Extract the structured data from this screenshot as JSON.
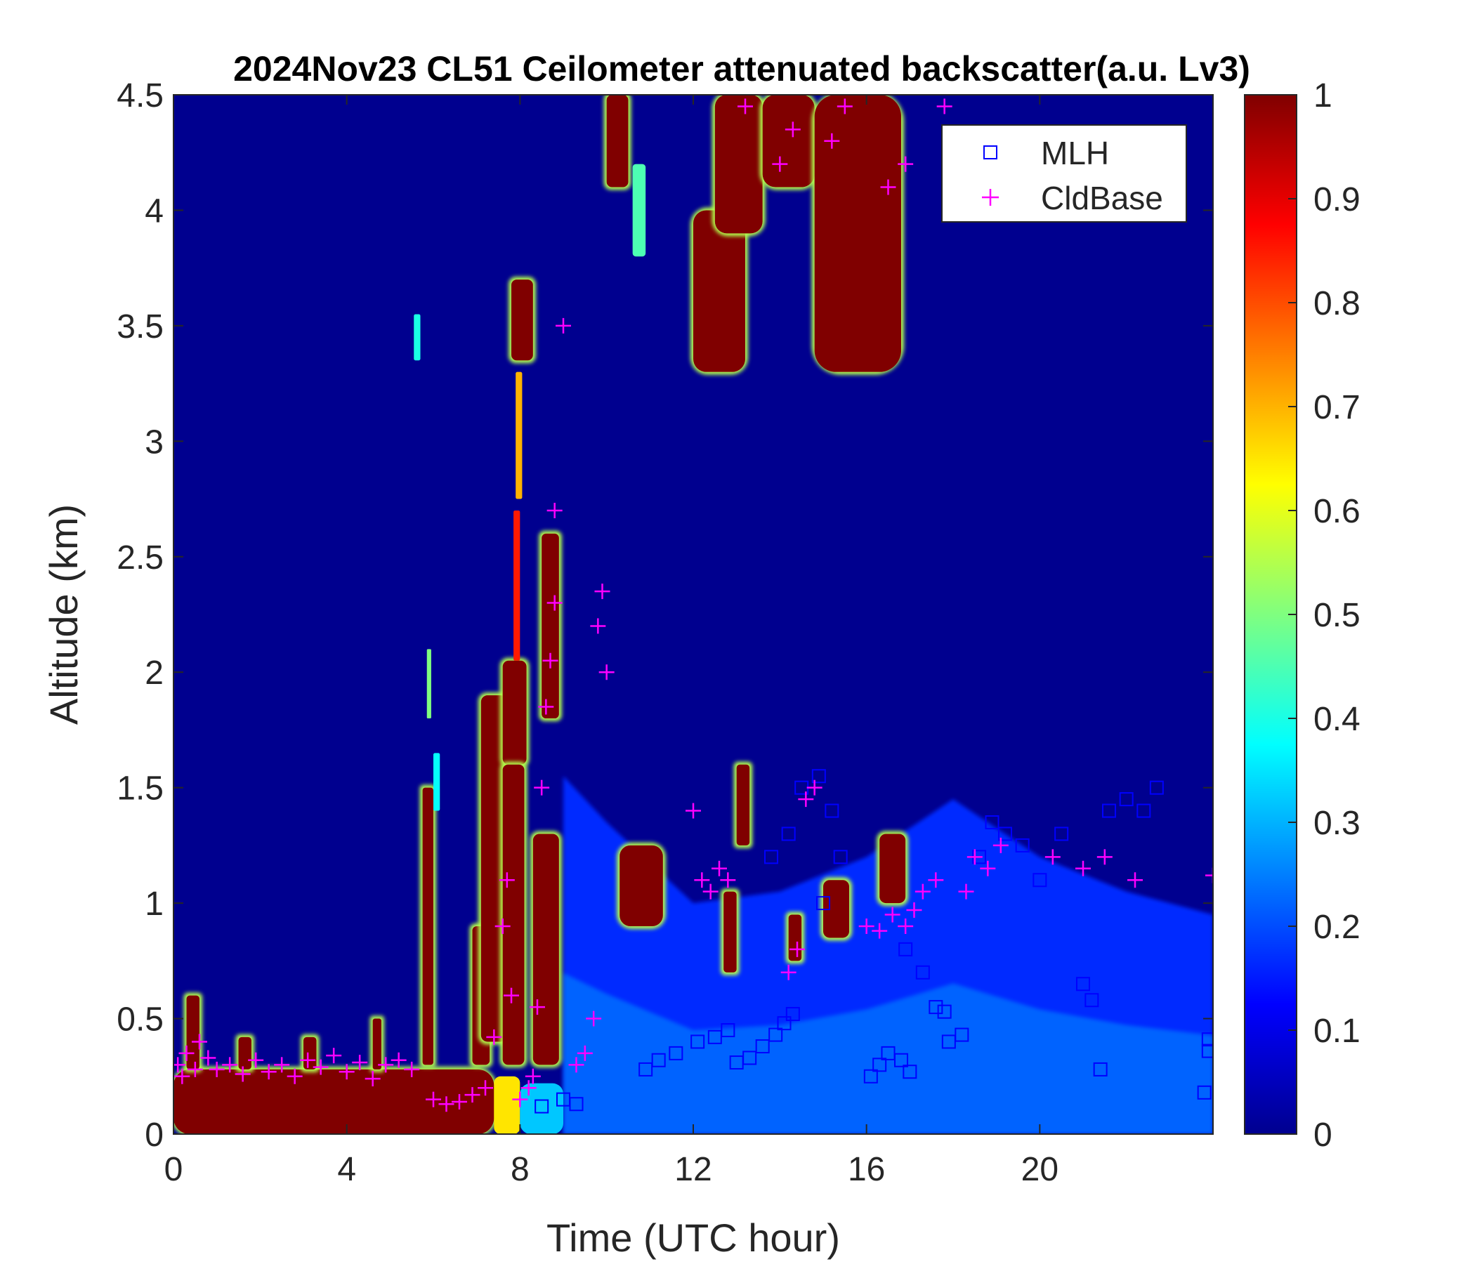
{
  "chart_data": {
    "type": "heatmap",
    "title": "2024Nov23 CL51 Ceilometer attenuated backscatter(a.u. Lv3)",
    "xlabel": "Time (UTC hour)",
    "ylabel": "Altitude (km)",
    "xlim": [
      0,
      24
    ],
    "ylim": [
      0,
      4.5
    ],
    "x_ticks": [
      0,
      4,
      8,
      12,
      16,
      20
    ],
    "x_tick_labels": [
      "0",
      "4",
      "8",
      "12",
      "16",
      "20"
    ],
    "y_ticks": [
      0,
      0.5,
      1,
      1.5,
      2,
      2.5,
      3,
      3.5,
      4,
      4.5
    ],
    "y_tick_labels": [
      "0",
      "0.5",
      "1",
      "1.5",
      "2",
      "2.5",
      "3",
      "3.5",
      "4",
      "4.5"
    ],
    "colorbar": {
      "min": 0,
      "max": 1,
      "ticks": [
        0,
        0.1,
        0.2,
        0.3,
        0.4,
        0.5,
        0.6,
        0.7,
        0.8,
        0.9,
        1
      ],
      "tick_labels": [
        "0",
        "0.1",
        "0.2",
        "0.3",
        "0.4",
        "0.5",
        "0.6",
        "0.7",
        "0.8",
        "0.9",
        "1"
      ],
      "colormap": "jet"
    },
    "legend": {
      "placement": "top-right",
      "entries": [
        {
          "label": "MLH",
          "marker": "square",
          "color": "#0000ff"
        },
        {
          "label": "CldBase",
          "marker": "plus",
          "color": "#ff00ff"
        }
      ]
    },
    "background_color": "#00008f",
    "aerosol_layer": [
      {
        "x": 9.0,
        "top": 1.55,
        "value": 0.14
      },
      {
        "x": 10.0,
        "top": 1.35,
        "value": 0.16
      },
      {
        "x": 12.0,
        "top": 1.0,
        "value": 0.18
      },
      {
        "x": 14.0,
        "top": 1.05,
        "value": 0.2
      },
      {
        "x": 16.0,
        "top": 1.2,
        "value": 0.19
      },
      {
        "x": 18.0,
        "top": 1.45,
        "value": 0.17
      },
      {
        "x": 20.0,
        "top": 1.2,
        "value": 0.16
      },
      {
        "x": 22.0,
        "top": 1.05,
        "value": 0.15
      },
      {
        "x": 24.0,
        "top": 0.95,
        "value": 0.14
      }
    ],
    "features": [
      {
        "x0": 0.0,
        "x1": 7.4,
        "y0": 0.0,
        "y1": 0.28,
        "value": 1.0
      },
      {
        "x0": 7.4,
        "x1": 8.0,
        "y0": 0.0,
        "y1": 0.25,
        "value": 0.65
      },
      {
        "x0": 8.0,
        "x1": 9.0,
        "y0": 0.0,
        "y1": 0.22,
        "value": 0.32
      },
      {
        "x0": 0.3,
        "x1": 0.6,
        "y0": 0.28,
        "y1": 0.6,
        "value": 1.0
      },
      {
        "x0": 1.5,
        "x1": 1.8,
        "y0": 0.28,
        "y1": 0.42,
        "value": 1.0
      },
      {
        "x0": 3.0,
        "x1": 3.3,
        "y0": 0.28,
        "y1": 0.42,
        "value": 1.0
      },
      {
        "x0": 4.6,
        "x1": 4.8,
        "y0": 0.28,
        "y1": 0.5,
        "value": 1.0
      },
      {
        "x0": 5.55,
        "x1": 5.7,
        "y0": 3.35,
        "y1": 3.55,
        "value": 0.4
      },
      {
        "x0": 5.75,
        "x1": 6.0,
        "y0": 0.3,
        "y1": 1.5,
        "value": 1.0
      },
      {
        "x0": 6.0,
        "x1": 6.15,
        "y0": 1.4,
        "y1": 1.65,
        "value": 0.38
      },
      {
        "x0": 5.85,
        "x1": 5.95,
        "y0": 1.8,
        "y1": 2.1,
        "value": 0.5
      },
      {
        "x0": 6.9,
        "x1": 7.3,
        "y0": 0.3,
        "y1": 0.9,
        "value": 1.0
      },
      {
        "x0": 7.1,
        "x1": 7.7,
        "y0": 0.4,
        "y1": 1.9,
        "value": 1.0
      },
      {
        "x0": 7.6,
        "x1": 8.15,
        "y0": 1.6,
        "y1": 2.05,
        "value": 1.0
      },
      {
        "x0": 7.6,
        "x1": 8.1,
        "y0": 0.3,
        "y1": 1.6,
        "value": 1.0
      },
      {
        "x0": 7.85,
        "x1": 8.0,
        "y0": 2.05,
        "y1": 2.7,
        "value": 0.85
      },
      {
        "x0": 7.9,
        "x1": 8.05,
        "y0": 2.75,
        "y1": 3.3,
        "value": 0.7
      },
      {
        "x0": 7.8,
        "x1": 8.3,
        "y0": 3.35,
        "y1": 3.7,
        "value": 1.0
      },
      {
        "x0": 8.5,
        "x1": 8.9,
        "y0": 1.8,
        "y1": 2.6,
        "value": 1.0
      },
      {
        "x0": 8.3,
        "x1": 8.9,
        "y0": 0.3,
        "y1": 1.3,
        "value": 1.0
      },
      {
        "x0": 10.0,
        "x1": 10.5,
        "y0": 4.1,
        "y1": 4.5,
        "value": 1.0
      },
      {
        "x0": 10.6,
        "x1": 10.9,
        "y0": 3.8,
        "y1": 4.2,
        "value": 0.45
      },
      {
        "x0": 10.3,
        "x1": 11.3,
        "y0": 0.9,
        "y1": 1.25,
        "value": 1.0
      },
      {
        "x0": 12.0,
        "x1": 13.2,
        "y0": 3.3,
        "y1": 4.0,
        "value": 1.0
      },
      {
        "x0": 12.5,
        "x1": 13.6,
        "y0": 3.9,
        "y1": 4.5,
        "value": 1.0
      },
      {
        "x0": 13.6,
        "x1": 14.8,
        "y0": 4.1,
        "y1": 4.5,
        "value": 1.0
      },
      {
        "x0": 14.8,
        "x1": 16.8,
        "y0": 3.3,
        "y1": 4.5,
        "value": 1.0
      },
      {
        "x0": 12.7,
        "x1": 13.0,
        "y0": 0.7,
        "y1": 1.05,
        "value": 1.0
      },
      {
        "x0": 13.0,
        "x1": 13.3,
        "y0": 1.25,
        "y1": 1.6,
        "value": 1.0
      },
      {
        "x0": 14.2,
        "x1": 14.5,
        "y0": 0.75,
        "y1": 0.95,
        "value": 1.0
      },
      {
        "x0": 15.0,
        "x1": 15.6,
        "y0": 0.85,
        "y1": 1.1,
        "value": 1.0
      },
      {
        "x0": 16.3,
        "x1": 16.9,
        "y0": 1.0,
        "y1": 1.3,
        "value": 1.0
      }
    ],
    "series": [
      {
        "name": "MLH",
        "marker": "square",
        "points": [
          [
            8.5,
            0.12
          ],
          [
            9.0,
            0.15
          ],
          [
            9.3,
            0.13
          ],
          [
            10.9,
            0.28
          ],
          [
            11.2,
            0.32
          ],
          [
            11.6,
            0.35
          ],
          [
            12.1,
            0.4
          ],
          [
            12.5,
            0.42
          ],
          [
            12.8,
            0.45
          ],
          [
            13.0,
            0.31
          ],
          [
            13.3,
            0.33
          ],
          [
            13.6,
            0.38
          ],
          [
            13.9,
            0.43
          ],
          [
            14.1,
            0.48
          ],
          [
            14.3,
            0.52
          ],
          [
            13.8,
            1.2
          ],
          [
            14.2,
            1.3
          ],
          [
            14.5,
            1.5
          ],
          [
            14.9,
            1.55
          ],
          [
            15.2,
            1.4
          ],
          [
            15.4,
            1.2
          ],
          [
            15.0,
            1.0
          ],
          [
            16.1,
            0.25
          ],
          [
            16.3,
            0.3
          ],
          [
            16.5,
            0.35
          ],
          [
            16.8,
            0.32
          ],
          [
            17.0,
            0.27
          ],
          [
            16.9,
            0.8
          ],
          [
            17.3,
            0.7
          ],
          [
            17.6,
            0.55
          ],
          [
            17.8,
            0.53
          ],
          [
            17.9,
            0.4
          ],
          [
            18.2,
            0.43
          ],
          [
            18.6,
            1.2
          ],
          [
            18.9,
            1.35
          ],
          [
            19.2,
            1.3
          ],
          [
            19.6,
            1.25
          ],
          [
            20.0,
            1.1
          ],
          [
            20.5,
            1.3
          ],
          [
            21.0,
            0.65
          ],
          [
            21.2,
            0.58
          ],
          [
            21.4,
            0.28
          ],
          [
            21.6,
            1.4
          ],
          [
            22.0,
            1.45
          ],
          [
            22.4,
            1.4
          ],
          [
            22.7,
            1.5
          ],
          [
            23.9,
            0.41
          ],
          [
            23.9,
            0.36
          ],
          [
            23.8,
            0.18
          ]
        ]
      },
      {
        "name": "CldBase",
        "marker": "plus",
        "points": [
          [
            0.1,
            0.3
          ],
          [
            0.2,
            0.25
          ],
          [
            0.3,
            0.35
          ],
          [
            0.5,
            0.28
          ],
          [
            0.6,
            0.4
          ],
          [
            0.8,
            0.33
          ],
          [
            1.0,
            0.28
          ],
          [
            1.3,
            0.3
          ],
          [
            1.6,
            0.26
          ],
          [
            1.9,
            0.32
          ],
          [
            2.2,
            0.27
          ],
          [
            2.5,
            0.3
          ],
          [
            2.8,
            0.25
          ],
          [
            3.1,
            0.32
          ],
          [
            3.4,
            0.29
          ],
          [
            3.7,
            0.34
          ],
          [
            4.0,
            0.27
          ],
          [
            4.3,
            0.31
          ],
          [
            4.6,
            0.24
          ],
          [
            4.9,
            0.3
          ],
          [
            5.2,
            0.32
          ],
          [
            5.5,
            0.28
          ],
          [
            6.0,
            0.15
          ],
          [
            6.3,
            0.13
          ],
          [
            6.6,
            0.14
          ],
          [
            6.9,
            0.17
          ],
          [
            7.2,
            0.2
          ],
          [
            7.4,
            0.42
          ],
          [
            7.6,
            0.9
          ],
          [
            7.7,
            1.1
          ],
          [
            7.8,
            0.6
          ],
          [
            8.0,
            0.15
          ],
          [
            8.2,
            0.2
          ],
          [
            8.3,
            0.25
          ],
          [
            8.4,
            0.55
          ],
          [
            8.5,
            1.5
          ],
          [
            8.6,
            1.85
          ],
          [
            8.7,
            2.05
          ],
          [
            8.8,
            2.3
          ],
          [
            8.8,
            2.7
          ],
          [
            9.0,
            3.5
          ],
          [
            9.3,
            0.3
          ],
          [
            9.5,
            0.35
          ],
          [
            9.7,
            0.5
          ],
          [
            9.8,
            2.2
          ],
          [
            9.9,
            2.35
          ],
          [
            10.0,
            2.0
          ],
          [
            12.0,
            1.4
          ],
          [
            12.2,
            1.1
          ],
          [
            12.4,
            1.05
          ],
          [
            12.6,
            1.15
          ],
          [
            12.8,
            1.1
          ],
          [
            14.2,
            0.7
          ],
          [
            14.4,
            0.8
          ],
          [
            14.6,
            1.45
          ],
          [
            14.8,
            1.5
          ],
          [
            15.2,
            4.3
          ],
          [
            15.5,
            4.45
          ],
          [
            16.0,
            0.9
          ],
          [
            16.3,
            0.88
          ],
          [
            16.6,
            0.95
          ],
          [
            16.9,
            0.9
          ],
          [
            17.1,
            0.97
          ],
          [
            17.3,
            1.05
          ],
          [
            17.6,
            1.1
          ],
          [
            17.8,
            4.45
          ],
          [
            18.3,
            1.05
          ],
          [
            18.5,
            1.2
          ],
          [
            18.8,
            1.15
          ],
          [
            19.1,
            1.25
          ],
          [
            20.3,
            1.2
          ],
          [
            21.0,
            1.15
          ],
          [
            21.5,
            1.2
          ],
          [
            22.2,
            1.1
          ],
          [
            24.0,
            1.12
          ],
          [
            14.0,
            4.2
          ],
          [
            14.3,
            4.35
          ],
          [
            16.5,
            4.1
          ],
          [
            16.9,
            4.2
          ],
          [
            13.2,
            4.45
          ]
        ]
      }
    ]
  }
}
